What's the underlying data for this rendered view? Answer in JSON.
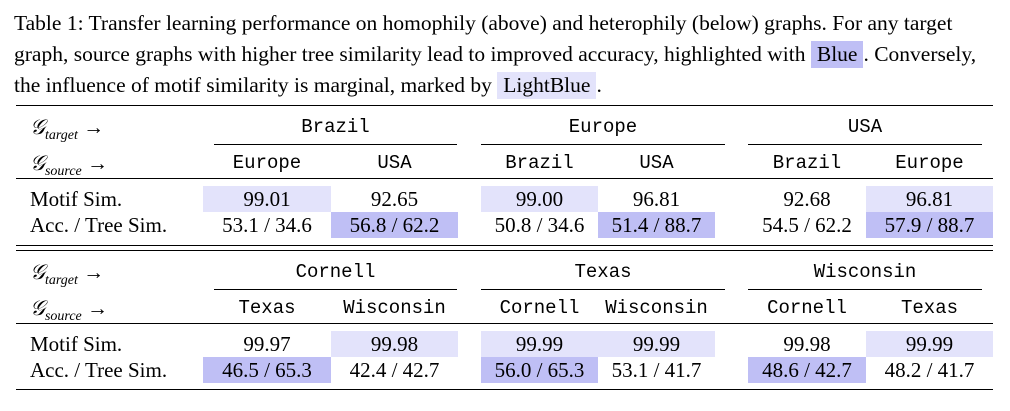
{
  "caption": {
    "part1": "Table 1: Transfer learning performance on homophily (above) and heterophily (below) graphs. For any target graph, source graphs with higher tree similarity lead to improved accuracy, highlighted with ",
    "blue_label": "Blue",
    "part2": ". Conversely, the influence of motif similarity is marginal, marked by ",
    "lightblue_label": "LightBlue",
    "part3": "."
  },
  "row_labels": {
    "target": "𝒢",
    "target_sub": "target",
    "source": "𝒢",
    "source_sub": "source",
    "arrow": "→",
    "motif": "Motif Sim.",
    "acc": "Acc. / Tree Sim."
  },
  "colors": {
    "blue": "#bfbff5",
    "lightblue": "#e3e3fb"
  },
  "blocks": [
    {
      "targets": [
        "Brazil",
        "Europe",
        "USA"
      ],
      "sources": [
        "Europe",
        "USA",
        "Brazil",
        "USA",
        "Brazil",
        "Europe"
      ],
      "motif": [
        "99.01",
        "92.65",
        "99.00",
        "96.81",
        "92.68",
        "96.81"
      ],
      "acc": [
        "53.1 / 34.6",
        "56.8 / 62.2",
        "50.8 / 34.6",
        "51.4 / 88.7",
        "54.5 / 62.2",
        "57.9 / 88.7"
      ]
    },
    {
      "targets": [
        "Cornell",
        "Texas",
        "Wisconsin"
      ],
      "sources": [
        "Texas",
        "Wisconsin",
        "Cornell",
        "Wisconsin",
        "Cornell",
        "Texas"
      ],
      "motif": [
        "99.97",
        "99.98",
        "99.99",
        "99.99",
        "99.98",
        "99.99"
      ],
      "acc": [
        "46.5 / 65.3",
        "42.4 / 42.7",
        "56.0 / 65.3",
        "53.1 / 41.7",
        "48.6 / 42.7",
        "48.2 / 41.7"
      ]
    }
  ]
}
